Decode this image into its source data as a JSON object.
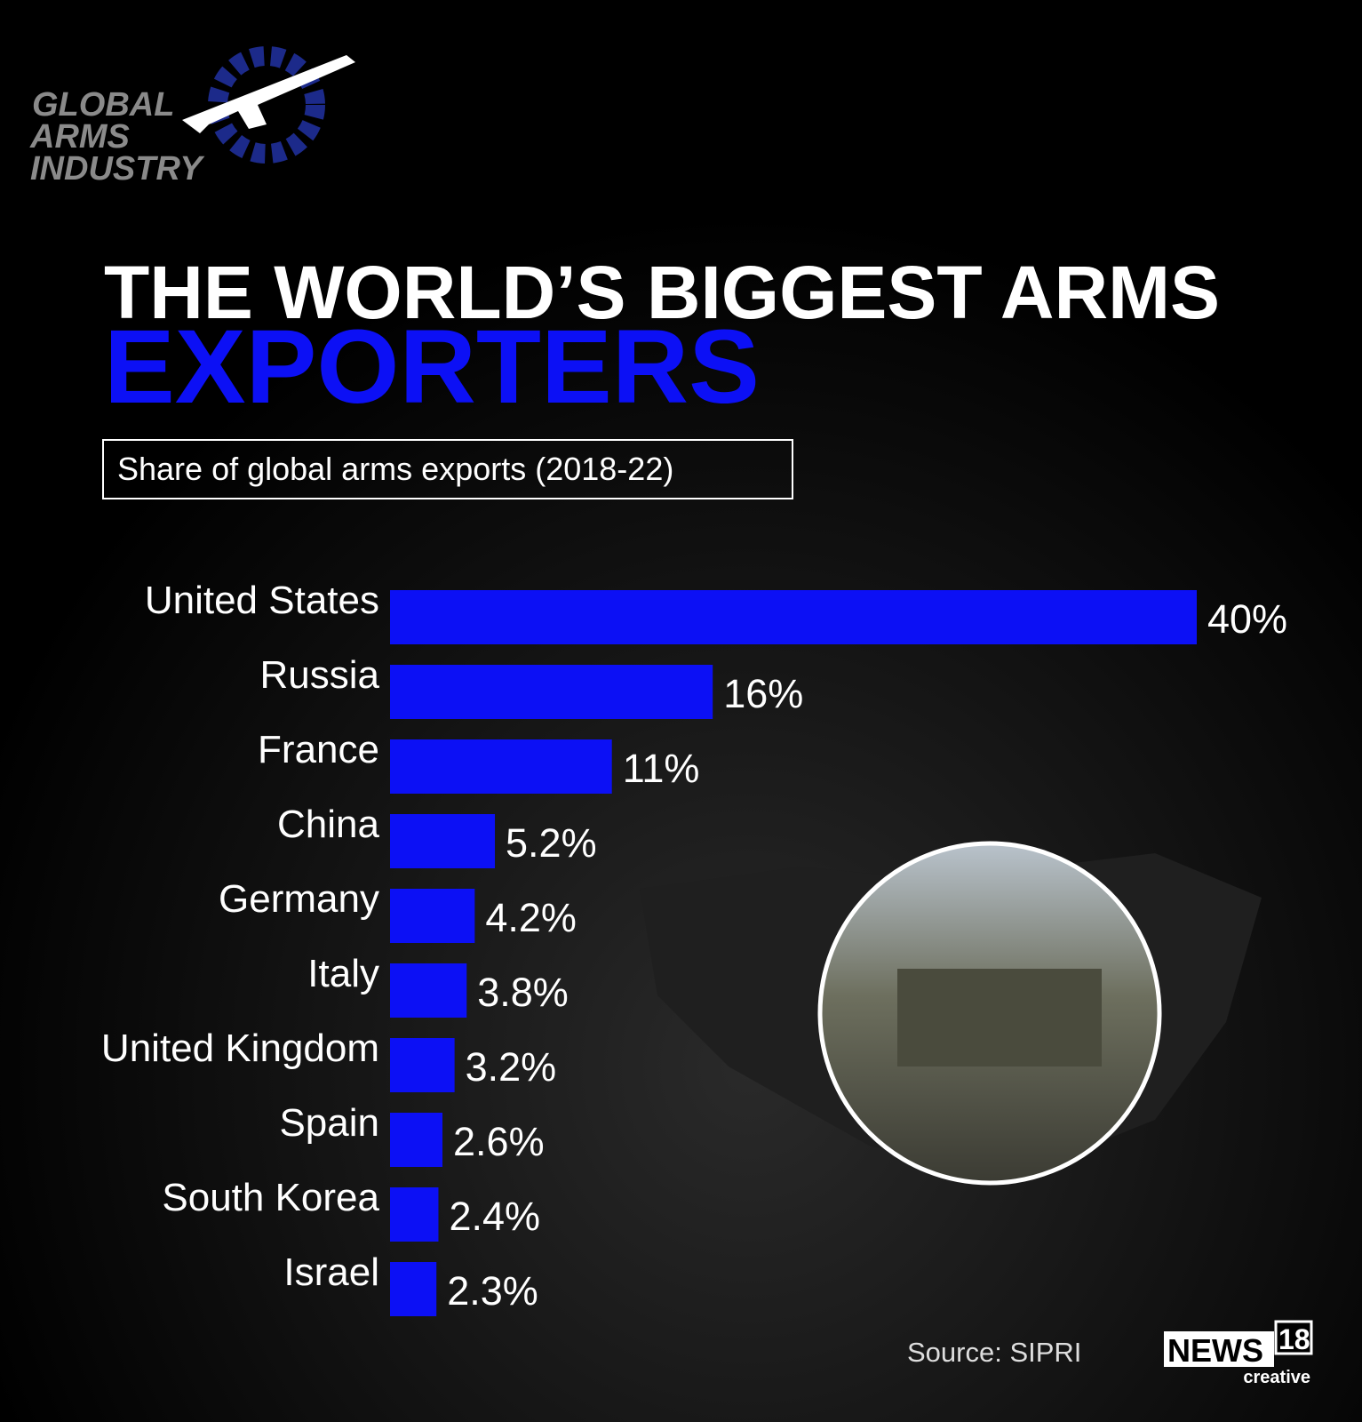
{
  "logo": {
    "lines": [
      "GLOBAL",
      "ARMS",
      "INDUSTRY"
    ]
  },
  "chart_data": {
    "type": "bar",
    "title": "THE WORLD’S BIGGEST ARMS",
    "title_highlight": "EXPORTERS",
    "subtitle": "Share of global arms exports (2018-22)",
    "categories": [
      "United States",
      "Russia",
      "France",
      "China",
      "Germany",
      "Italy",
      "United Kingdom",
      "Spain",
      "South Korea",
      "Israel"
    ],
    "values": [
      40,
      16,
      11,
      5.2,
      4.2,
      3.8,
      3.2,
      2.6,
      2.4,
      2.3
    ],
    "value_labels": [
      "40%",
      "16%",
      "11%",
      "5.2%",
      "4.2%",
      "3.8%",
      "3.2%",
      "2.6%",
      "2.4%",
      "2.3%"
    ],
    "color": "#0c10f5",
    "source": "Source: SIPRI"
  },
  "brand": {
    "name": "NEWS",
    "number": "18",
    "tag": "creative"
  }
}
